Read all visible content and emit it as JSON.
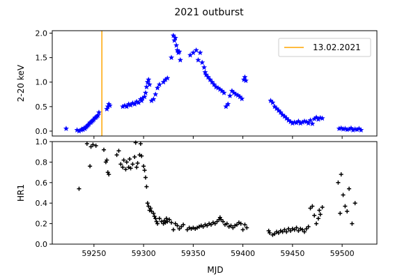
{
  "chart_data": {
    "type": "scatter",
    "title": "2021 outburst",
    "xlabel": "MJD",
    "xlim": [
      59208,
      59535
    ],
    "xticks": [
      59250,
      59300,
      59350,
      59400,
      59450,
      59500
    ],
    "panels": [
      {
        "ylabel": "2-20 keV",
        "ylim": [
          -0.1,
          2.05
        ],
        "yticks": [
          "0.0",
          "0.5",
          "1.0",
          "1.5",
          "2.0"
        ],
        "ytick_values": [
          0.0,
          0.5,
          1.0,
          1.5,
          2.0
        ],
        "marker": "star",
        "color": "#0000ff",
        "legend": {
          "label": "13.02.2021",
          "placement": "top-right",
          "color": "#ffa500"
        },
        "vline": {
          "x": 59258,
          "color": "#ffa500"
        },
        "points": [
          [
            59222,
            0.05
          ],
          [
            59233,
            0.02
          ],
          [
            59235,
            0.0
          ],
          [
            59237,
            0.02
          ],
          [
            59238,
            0.04
          ],
          [
            59239,
            0.03
          ],
          [
            59240,
            0.06
          ],
          [
            59241,
            0.05
          ],
          [
            59242,
            0.08
          ],
          [
            59243,
            0.1
          ],
          [
            59244,
            0.12
          ],
          [
            59245,
            0.14
          ],
          [
            59246,
            0.17
          ],
          [
            59247,
            0.18
          ],
          [
            59248,
            0.2
          ],
          [
            59249,
            0.22
          ],
          [
            59250,
            0.24
          ],
          [
            59251,
            0.27
          ],
          [
            59252,
            0.28
          ],
          [
            59253,
            0.3
          ],
          [
            59254,
            0.32
          ],
          [
            59255,
            0.38
          ],
          [
            59263,
            0.45
          ],
          [
            59264,
            0.5
          ],
          [
            59265,
            0.55
          ],
          [
            59266,
            0.52
          ],
          [
            59279,
            0.5
          ],
          [
            59281,
            0.52
          ],
          [
            59283,
            0.5
          ],
          [
            59285,
            0.55
          ],
          [
            59287,
            0.53
          ],
          [
            59289,
            0.57
          ],
          [
            59291,
            0.55
          ],
          [
            59293,
            0.6
          ],
          [
            59295,
            0.58
          ],
          [
            59297,
            0.65
          ],
          [
            59298,
            0.62
          ],
          [
            59299,
            0.67
          ],
          [
            59301,
            0.7
          ],
          [
            59302,
            0.78
          ],
          [
            59303,
            0.9
          ],
          [
            59304,
            1.0
          ],
          [
            59305,
            1.05
          ],
          [
            59306,
            0.95
          ],
          [
            59308,
            0.62
          ],
          [
            59310,
            0.65
          ],
          [
            59312,
            0.75
          ],
          [
            59314,
            0.88
          ],
          [
            59316,
            0.95
          ],
          [
            59320,
            1.0
          ],
          [
            59322,
            1.05
          ],
          [
            59324,
            1.08
          ],
          [
            59328,
            1.5
          ],
          [
            59330,
            1.95
          ],
          [
            59331,
            1.85
          ],
          [
            59332,
            1.9
          ],
          [
            59333,
            1.75
          ],
          [
            59334,
            1.65
          ],
          [
            59335,
            1.6
          ],
          [
            59336,
            1.62
          ],
          [
            59337,
            1.45
          ],
          [
            59347,
            1.55
          ],
          [
            59350,
            1.6
          ],
          [
            59353,
            1.65
          ],
          [
            59355,
            1.45
          ],
          [
            59357,
            1.6
          ],
          [
            59359,
            1.4
          ],
          [
            59361,
            1.3
          ],
          [
            59362,
            1.2
          ],
          [
            59363,
            1.15
          ],
          [
            59365,
            1.1
          ],
          [
            59367,
            1.05
          ],
          [
            59369,
            1.0
          ],
          [
            59371,
            0.95
          ],
          [
            59373,
            0.9
          ],
          [
            59375,
            0.88
          ],
          [
            59377,
            0.85
          ],
          [
            59379,
            0.82
          ],
          [
            59381,
            0.78
          ],
          [
            59383,
            0.5
          ],
          [
            59385,
            0.55
          ],
          [
            59387,
            0.72
          ],
          [
            59389,
            0.82
          ],
          [
            59391,
            0.78
          ],
          [
            59393,
            0.75
          ],
          [
            59395,
            0.73
          ],
          [
            59397,
            0.7
          ],
          [
            59399,
            0.66
          ],
          [
            59401,
            1.05
          ],
          [
            59402,
            1.1
          ],
          [
            59403,
            1.03
          ],
          [
            59428,
            0.62
          ],
          [
            59430,
            0.58
          ],
          [
            59432,
            0.5
          ],
          [
            59434,
            0.46
          ],
          [
            59436,
            0.42
          ],
          [
            59438,
            0.38
          ],
          [
            59440,
            0.33
          ],
          [
            59442,
            0.3
          ],
          [
            59444,
            0.26
          ],
          [
            59446,
            0.22
          ],
          [
            59448,
            0.19
          ],
          [
            59450,
            0.16
          ],
          [
            59452,
            0.18
          ],
          [
            59454,
            0.17
          ],
          [
            59456,
            0.2
          ],
          [
            59458,
            0.16
          ],
          [
            59460,
            0.18
          ],
          [
            59462,
            0.2
          ],
          [
            59464,
            0.19
          ],
          [
            59466,
            0.16
          ],
          [
            59468,
            0.22
          ],
          [
            59470,
            0.15
          ],
          [
            59472,
            0.25
          ],
          [
            59474,
            0.28
          ],
          [
            59476,
            0.24
          ],
          [
            59478,
            0.27
          ],
          [
            59480,
            0.26
          ],
          [
            59497,
            0.05
          ],
          [
            59499,
            0.06
          ],
          [
            59501,
            0.04
          ],
          [
            59503,
            0.05
          ],
          [
            59505,
            0.03
          ],
          [
            59507,
            0.04
          ],
          [
            59509,
            0.06
          ],
          [
            59511,
            0.02
          ],
          [
            59513,
            0.04
          ],
          [
            59515,
            0.03
          ],
          [
            59517,
            0.05
          ],
          [
            59519,
            0.02
          ]
        ]
      },
      {
        "ylabel": "HR1",
        "ylim": [
          0.0,
          1.0
        ],
        "yticks": [
          "0.0",
          "0.2",
          "0.4",
          "0.6",
          "0.8",
          "1.0"
        ],
        "ytick_values": [
          0.0,
          0.2,
          0.4,
          0.6,
          0.8,
          1.0
        ],
        "marker": "plus",
        "color": "#000000",
        "points": [
          [
            59235,
            0.54
          ],
          [
            59243,
            0.98
          ],
          [
            59246,
            0.76
          ],
          [
            59247,
            0.95
          ],
          [
            59249,
            0.97
          ],
          [
            59252,
            0.96
          ],
          [
            59260,
            0.92
          ],
          [
            59262,
            0.8
          ],
          [
            59263,
            0.82
          ],
          [
            59264,
            0.7
          ],
          [
            59265,
            0.68
          ],
          [
            59273,
            0.87
          ],
          [
            59275,
            0.91
          ],
          [
            59277,
            0.78
          ],
          [
            59279,
            0.75
          ],
          [
            59280,
            0.82
          ],
          [
            59282,
            0.73
          ],
          [
            59283,
            0.8
          ],
          [
            59285,
            0.75
          ],
          [
            59286,
            0.83
          ],
          [
            59287,
            0.74
          ],
          [
            59289,
            0.78
          ],
          [
            59291,
            0.85
          ],
          [
            59292,
            0.99
          ],
          [
            59293,
            0.75
          ],
          [
            59294,
            0.79
          ],
          [
            59296,
            0.87
          ],
          [
            59297,
            0.98
          ],
          [
            59298,
            0.86
          ],
          [
            59300,
            0.76
          ],
          [
            59301,
            0.72
          ],
          [
            59302,
            0.65
          ],
          [
            59303,
            0.56
          ],
          [
            59304,
            0.4
          ],
          [
            59305,
            0.37
          ],
          [
            59306,
            0.33
          ],
          [
            59307,
            0.35
          ],
          [
            59308,
            0.32
          ],
          [
            59310,
            0.3
          ],
          [
            59311,
            0.27
          ],
          [
            59312,
            0.25
          ],
          [
            59313,
            0.22
          ],
          [
            59314,
            0.2
          ],
          [
            59316,
            0.25
          ],
          [
            59318,
            0.22
          ],
          [
            59320,
            0.2
          ],
          [
            59321,
            0.23
          ],
          [
            59322,
            0.21
          ],
          [
            59323,
            0.25
          ],
          [
            59324,
            0.22
          ],
          [
            59326,
            0.24
          ],
          [
            59328,
            0.21
          ],
          [
            59330,
            0.14
          ],
          [
            59332,
            0.2
          ],
          [
            59334,
            0.18
          ],
          [
            59336,
            0.15
          ],
          [
            59338,
            0.17
          ],
          [
            59340,
            0.19
          ],
          [
            59344,
            0.14
          ],
          [
            59346,
            0.16
          ],
          [
            59348,
            0.15
          ],
          [
            59350,
            0.16
          ],
          [
            59352,
            0.15
          ],
          [
            59354,
            0.16
          ],
          [
            59356,
            0.17
          ],
          [
            59358,
            0.18
          ],
          [
            59360,
            0.17
          ],
          [
            59362,
            0.19
          ],
          [
            59364,
            0.18
          ],
          [
            59366,
            0.2
          ],
          [
            59368,
            0.19
          ],
          [
            59370,
            0.21
          ],
          [
            59372,
            0.2
          ],
          [
            59374,
            0.22
          ],
          [
            59376,
            0.24
          ],
          [
            59377,
            0.26
          ],
          [
            59378,
            0.24
          ],
          [
            59380,
            0.22
          ],
          [
            59382,
            0.19
          ],
          [
            59384,
            0.2
          ],
          [
            59386,
            0.17
          ],
          [
            59388,
            0.18
          ],
          [
            59390,
            0.16
          ],
          [
            59392,
            0.18
          ],
          [
            59394,
            0.19
          ],
          [
            59396,
            0.21
          ],
          [
            59398,
            0.2
          ],
          [
            59400,
            0.14
          ],
          [
            59402,
            0.19
          ],
          [
            59404,
            0.16
          ],
          [
            59426,
            0.13
          ],
          [
            59427,
            0.11
          ],
          [
            59430,
            0.09
          ],
          [
            59432,
            0.1
          ],
          [
            59434,
            0.12
          ],
          [
            59436,
            0.11
          ],
          [
            59438,
            0.13
          ],
          [
            59440,
            0.12
          ],
          [
            59442,
            0.14
          ],
          [
            59444,
            0.12
          ],
          [
            59446,
            0.15
          ],
          [
            59448,
            0.13
          ],
          [
            59450,
            0.15
          ],
          [
            59452,
            0.14
          ],
          [
            59454,
            0.16
          ],
          [
            59456,
            0.13
          ],
          [
            59458,
            0.15
          ],
          [
            59460,
            0.14
          ],
          [
            59462,
            0.12
          ],
          [
            59464,
            0.15
          ],
          [
            59466,
            0.17
          ],
          [
            59468,
            0.35
          ],
          [
            59470,
            0.37
          ],
          [
            59472,
            0.28
          ],
          [
            59474,
            0.2
          ],
          [
            59476,
            0.25
          ],
          [
            59477,
            0.33
          ],
          [
            59478,
            0.29
          ],
          [
            59480,
            0.36
          ],
          [
            59496,
            0.6
          ],
          [
            59498,
            0.3
          ],
          [
            59499,
            0.68
          ],
          [
            59501,
            0.48
          ],
          [
            59503,
            0.37
          ],
          [
            59505,
            0.32
          ],
          [
            59507,
            0.54
          ],
          [
            59510,
            0.2
          ],
          [
            59513,
            0.4
          ]
        ]
      }
    ]
  }
}
